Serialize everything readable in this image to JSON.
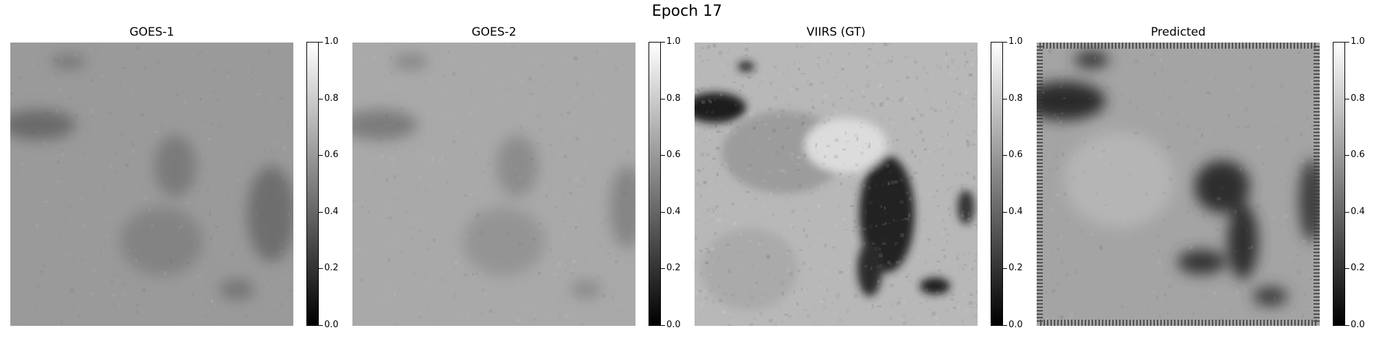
{
  "figure": {
    "title": "Epoch 17"
  },
  "panels": [
    {
      "title": "GOES-1"
    },
    {
      "title": "GOES-2"
    },
    {
      "title": "VIIRS (GT)"
    },
    {
      "title": "Predicted"
    }
  ],
  "colorbar": {
    "colormap": "gray",
    "ticks": [
      "0.0",
      "0.2",
      "0.4",
      "0.6",
      "0.8",
      "1.0"
    ],
    "ticks_note": "shared scale 0.0 (black) to 1.0 (white)"
  }
}
